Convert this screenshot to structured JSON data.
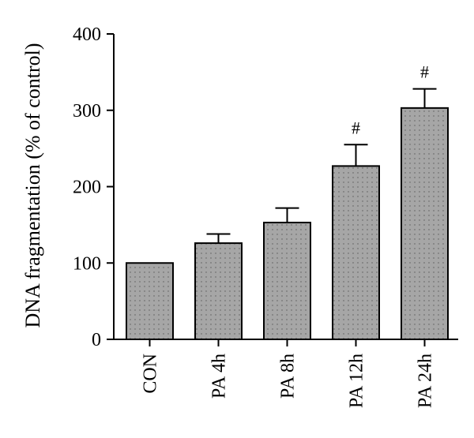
{
  "chart_data": {
    "type": "bar",
    "title": "",
    "xlabel": "",
    "ylabel": "DNA fragmentation (% of control)",
    "categories": [
      "CON",
      "PA 4h",
      "PA 8h",
      "PA 12h",
      "PA 24h"
    ],
    "values": [
      100,
      126,
      153,
      227,
      303
    ],
    "errors": [
      0,
      12,
      19,
      28,
      25
    ],
    "annotations": [
      "",
      "",
      "",
      "#",
      "#"
    ],
    "ylim": [
      0,
      400
    ],
    "yticks": [
      "0",
      "100",
      "200",
      "300",
      "400"
    ],
    "grid": false,
    "legend": "none",
    "colors": {
      "bar_fill": "#a6a6a6",
      "bar_stroke": "#000000"
    }
  }
}
